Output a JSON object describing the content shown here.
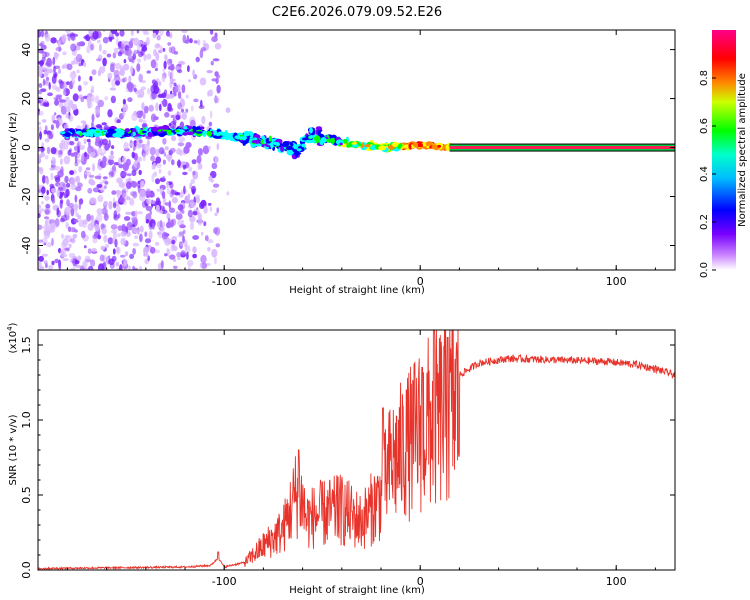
{
  "title": "C2E6.2026.079.09.52.E26",
  "colors": {
    "snr_line": "#e8332a",
    "frame": "#000000",
    "band_line": "#ff0055"
  },
  "chart_data": [
    {
      "type": "heatmap",
      "title": "C2E6.2026.079.09.52.E26",
      "xlabel": "Height of straight line (km)",
      "ylabel": "Frequency (Hz)",
      "xlim": [
        -195,
        130
      ],
      "ylim": [
        -50,
        48
      ],
      "xticks": [
        -100,
        0,
        100
      ],
      "xtick_labels": [
        "-100",
        "0",
        "100"
      ],
      "yticks": [
        -40,
        -20,
        0,
        20,
        40
      ],
      "ytick_labels": [
        "-40",
        "-20",
        "0",
        "20",
        "40"
      ],
      "colorbar": {
        "label": "Normalized spectral amplitude",
        "range": [
          0,
          1
        ],
        "ticks": [
          0.0,
          0.2,
          0.4,
          0.6,
          0.8
        ],
        "tick_labels": [
          "0.0",
          "0.2",
          "0.4",
          "0.6",
          "0.8"
        ],
        "colormap": [
          "#ffffff",
          "#7700ff",
          "#0000ff",
          "#00ffff",
          "#00ff00",
          "#ffff00",
          "#ff8800",
          "#ff0000",
          "#ff0088"
        ]
      },
      "features": {
        "noise_region_x": [
          -195,
          -103
        ],
        "signal_band_center_hz": [
          {
            "x": -175,
            "f": 6
          },
          {
            "x": -150,
            "f": 6
          },
          {
            "x": -120,
            "f": 7
          },
          {
            "x": -100,
            "f": 5
          },
          {
            "x": -80,
            "f": 3
          },
          {
            "x": -62,
            "f": -1
          },
          {
            "x": -55,
            "f": 5
          },
          {
            "x": -40,
            "f": 2
          },
          {
            "x": -20,
            "f": 0
          },
          {
            "x": 0,
            "f": 1
          },
          {
            "x": 15,
            "f": 0
          },
          {
            "x": 130,
            "f": 0
          }
        ],
        "steady_tone_x": [
          15,
          130
        ],
        "steady_tone_hz": 0
      }
    },
    {
      "type": "line",
      "xlabel": "Height of straight line (km)",
      "ylabel": "SNR (10 * v/v)",
      "y_multiplier": "(x10",
      "y_multiplier_exp": "4",
      "y_multiplier_close": ")",
      "xlim": [
        -195,
        130
      ],
      "ylim": [
        0,
        1.6
      ],
      "xticks": [
        -100,
        0,
        100
      ],
      "xtick_labels": [
        "-100",
        "0",
        "100"
      ],
      "yticks": [
        0.0,
        0.5,
        1.0,
        1.5
      ],
      "ytick_labels": [
        "0.0",
        "0.5",
        "1.0",
        "1.5"
      ],
      "series": [
        {
          "name": "SNR",
          "envelope": [
            {
              "x": -195,
              "y": 0.01
            },
            {
              "x": -120,
              "y": 0.02
            },
            {
              "x": -107,
              "y": 0.03
            },
            {
              "x": -103,
              "y": 0.08
            },
            {
              "x": -100,
              "y": 0.02
            },
            {
              "x": -90,
              "y": 0.05
            },
            {
              "x": -80,
              "y": 0.18
            },
            {
              "x": -70,
              "y": 0.3
            },
            {
              "x": -62,
              "y": 0.62
            },
            {
              "x": -58,
              "y": 0.38
            },
            {
              "x": -50,
              "y": 0.42
            },
            {
              "x": -40,
              "y": 0.45
            },
            {
              "x": -30,
              "y": 0.36
            },
            {
              "x": -20,
              "y": 0.55
            },
            {
              "x": -15,
              "y": 0.8
            },
            {
              "x": -5,
              "y": 0.95
            },
            {
              "x": 0,
              "y": 1.05
            },
            {
              "x": 5,
              "y": 1.1
            },
            {
              "x": 10,
              "y": 1.15
            },
            {
              "x": 15,
              "y": 1.2
            },
            {
              "x": 20,
              "y": 1.3
            },
            {
              "x": 30,
              "y": 1.38
            },
            {
              "x": 45,
              "y": 1.41
            },
            {
              "x": 70,
              "y": 1.4
            },
            {
              "x": 95,
              "y": 1.39
            },
            {
              "x": 110,
              "y": 1.37
            },
            {
              "x": 120,
              "y": 1.34
            },
            {
              "x": 130,
              "y": 1.3
            }
          ],
          "peaks": [
            {
              "x": -103,
              "y": 0.12
            },
            {
              "x": -62,
              "y": 0.8
            },
            {
              "x": -42,
              "y": 0.62
            },
            {
              "x": -19,
              "y": 1.08
            },
            {
              "x": -7,
              "y": 1.2
            },
            {
              "x": 1,
              "y": 1.35
            },
            {
              "x": 7,
              "y": 1.62
            },
            {
              "x": 14,
              "y": 1.55
            }
          ]
        }
      ]
    }
  ]
}
